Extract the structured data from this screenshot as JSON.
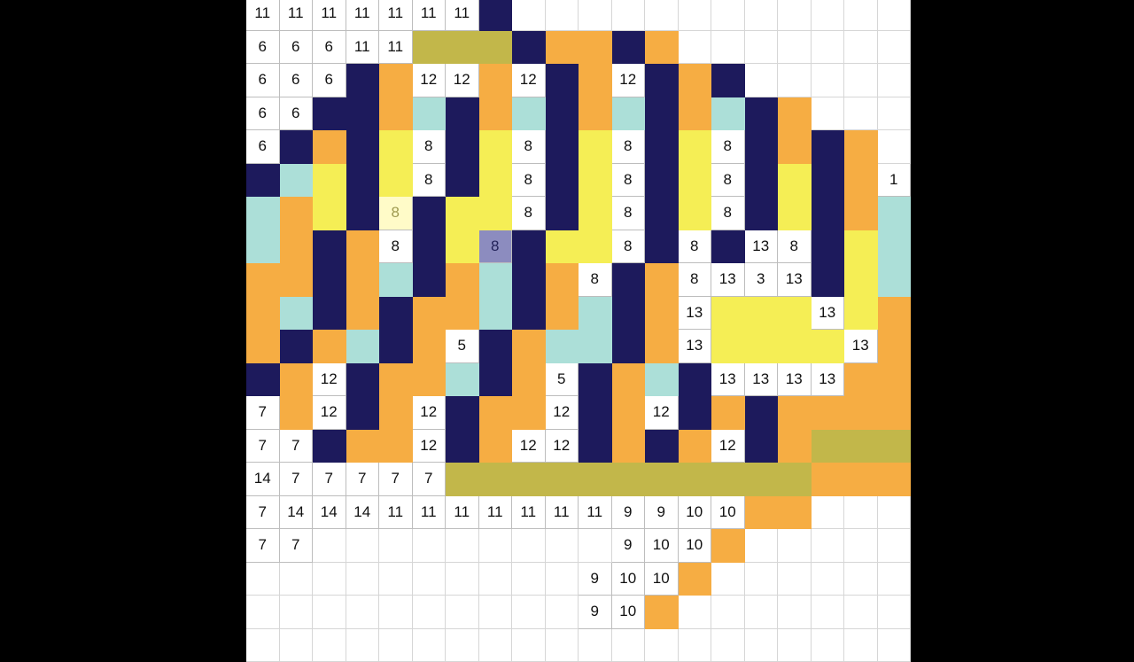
{
  "palette": {
    "D": "#1d1a5c",
    "O": "#f6ad43",
    "Y": "#f5ee55",
    "C": "#acdfd8",
    "G": "#c2b74a",
    "W": "#ffffff"
  },
  "board": {
    "selected_number": "8",
    "rows": [
      [
        "11",
        "11",
        "11",
        "11",
        "11",
        "11",
        "11",
        "D",
        "W",
        "W",
        "W",
        "W",
        "W",
        "W",
        "W",
        "W",
        "W",
        "W",
        "W",
        "W"
      ],
      [
        "6",
        "6",
        "6",
        "11",
        "11",
        "G",
        "G",
        "G",
        "D",
        "O",
        "O",
        "D",
        "O",
        "W",
        "W",
        "W",
        "W",
        "W",
        "W",
        "W"
      ],
      [
        "6",
        "6",
        "6",
        "D",
        "O",
        "12",
        "12",
        "O",
        "12",
        "D",
        "O",
        "12",
        "D",
        "O",
        "D",
        "W",
        "W",
        "W",
        "W",
        "W"
      ],
      [
        "6",
        "6",
        "D",
        "D",
        "O",
        "C",
        "D",
        "O",
        "C",
        "D",
        "O",
        "C",
        "D",
        "O",
        "C",
        "D",
        "O",
        "W",
        "W",
        "W"
      ],
      [
        "6",
        "D",
        "O",
        "D",
        "Y",
        "8",
        "D",
        "Y",
        "8",
        "D",
        "Y",
        "8",
        "D",
        "Y",
        "8",
        "D",
        "O",
        "D",
        "O",
        "W"
      ],
      [
        "D",
        "C",
        "Y",
        "D",
        "Y",
        "8",
        "D",
        "Y",
        "8",
        "D",
        "Y",
        "8",
        "D",
        "Y",
        "8",
        "D",
        "Y",
        "D",
        "O",
        "1"
      ],
      [
        "C",
        "O",
        "Y",
        "D",
        "8",
        "D",
        "Y",
        "Y",
        "8",
        "D",
        "Y",
        "8",
        "D",
        "Y",
        "8",
        "D",
        "Y",
        "D",
        "O",
        "C"
      ],
      [
        "C",
        "O",
        "D",
        "O",
        "8",
        "D",
        "Y",
        "8",
        "D",
        "Y",
        "Y",
        "8",
        "D",
        "8",
        "D",
        "13",
        "8",
        "D",
        "Y",
        "C"
      ],
      [
        "O",
        "O",
        "D",
        "O",
        "C",
        "D",
        "O",
        "C",
        "D",
        "O",
        "8",
        "D",
        "O",
        "8",
        "13",
        "3",
        "13",
        "D",
        "Y",
        "C"
      ],
      [
        "O",
        "C",
        "D",
        "O",
        "D",
        "O",
        "O",
        "C",
        "D",
        "O",
        "C",
        "D",
        "O",
        "13",
        "Y",
        "Y",
        "Y",
        "13",
        "Y",
        "O"
      ],
      [
        "O",
        "D",
        "O",
        "C",
        "D",
        "O",
        "5",
        "D",
        "O",
        "C",
        "C",
        "D",
        "O",
        "13",
        "Y",
        "Y",
        "Y",
        "Y",
        "13",
        "O"
      ],
      [
        "D",
        "O",
        "12",
        "D",
        "O",
        "O",
        "C",
        "D",
        "O",
        "5",
        "D",
        "O",
        "C",
        "D",
        "13",
        "13",
        "13",
        "13",
        "O",
        "O"
      ],
      [
        "7",
        "O",
        "12",
        "D",
        "O",
        "12",
        "D",
        "O",
        "O",
        "12",
        "D",
        "O",
        "12",
        "D",
        "O",
        "D",
        "O",
        "O",
        "O",
        "O"
      ],
      [
        "7",
        "7",
        "D",
        "O",
        "O",
        "12",
        "D",
        "O",
        "12",
        "12",
        "D",
        "O",
        "D",
        "O",
        "12",
        "D",
        "O",
        "G",
        "G",
        "G"
      ],
      [
        "14",
        "7",
        "7",
        "7",
        "7",
        "7",
        "G",
        "G",
        "G",
        "G",
        "G",
        "G",
        "G",
        "G",
        "G",
        "G",
        "G",
        "O",
        "O",
        "O"
      ],
      [
        "7",
        "14",
        "14",
        "14",
        "11",
        "11",
        "11",
        "11",
        "11",
        "11",
        "11",
        "9",
        "9",
        "10",
        "10",
        "O",
        "O",
        "W",
        "W",
        "W"
      ],
      [
        "7",
        "7",
        "W",
        "W",
        "W",
        "W",
        "W",
        "W",
        "W",
        "W",
        "W",
        "9",
        "10",
        "10",
        "O",
        "W",
        "W",
        "W",
        "W",
        "W"
      ],
      [
        "W",
        "W",
        "W",
        "W",
        "W",
        "W",
        "W",
        "W",
        "W",
        "W",
        "9",
        "10",
        "10",
        "O",
        "W",
        "W",
        "W",
        "W",
        "W",
        "W"
      ],
      [
        "W",
        "W",
        "W",
        "W",
        "W",
        "W",
        "W",
        "W",
        "W",
        "W",
        "9",
        "10",
        "O",
        "W",
        "W",
        "W",
        "W",
        "W",
        "W",
        "W"
      ],
      [
        "W",
        "W",
        "W",
        "W",
        "W",
        "W",
        "W",
        "W",
        "W",
        "W",
        "W",
        "W",
        "W",
        "W",
        "W",
        "W",
        "W",
        "W",
        "W",
        "W"
      ]
    ]
  }
}
